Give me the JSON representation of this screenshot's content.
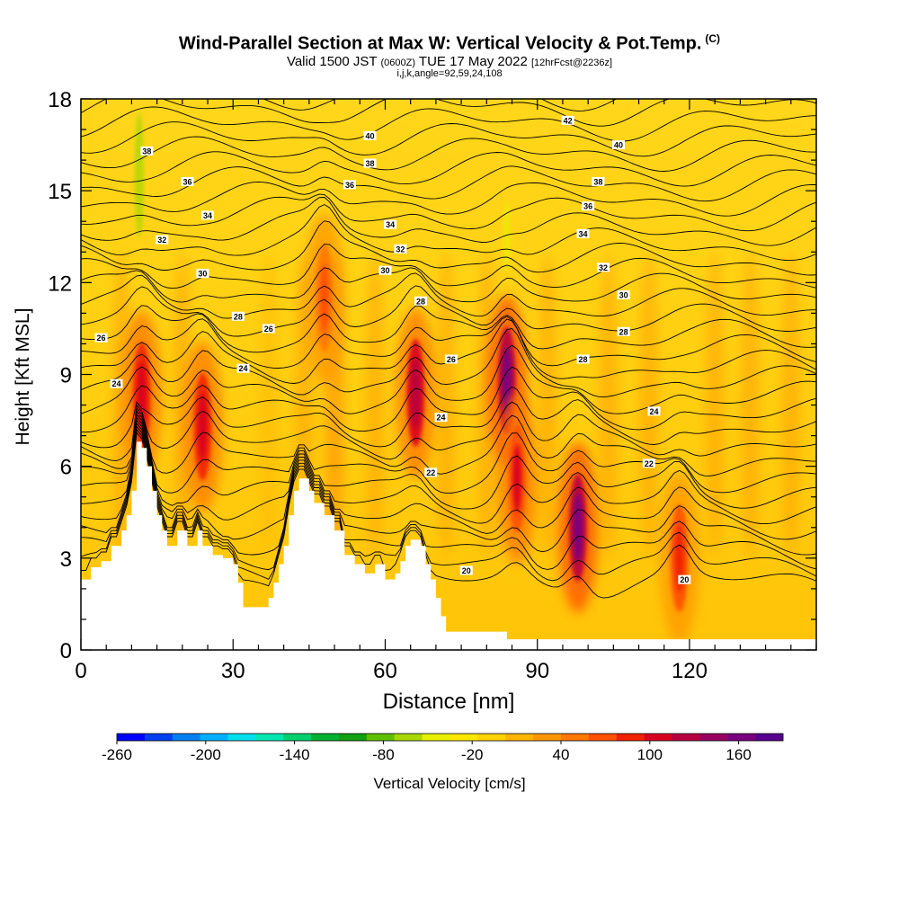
{
  "title": "Wind-Parallel Section at Max W: Vertical Velocity & Pot.Temp.",
  "title_mark": "(C)",
  "subtitle_main": "Valid 1500 JST",
  "subtitle_utc": "(0600Z)",
  "subtitle_date": "TUE 17 May 2022",
  "subtitle_fcst": "[12hrFcst@2236z]",
  "params": "i,j,k,angle=92,59,24,108",
  "chart_data": {
    "type": "heatmap",
    "title": "Wind-Parallel Section at Max W: Vertical Velocity & Pot.Temp.",
    "xlabel": "Distance [nm]",
    "ylabel": "Height [Kft MSL]",
    "xlim": [
      0,
      145
    ],
    "ylim": [
      0,
      18
    ],
    "x_ticks": [
      "0",
      "30",
      "60",
      "90",
      "120"
    ],
    "y_ticks": [
      "0",
      "3",
      "6",
      "9",
      "12",
      "15",
      "18"
    ],
    "colorbar": {
      "label": "Vertical Velocity [cm/s]",
      "tick_labels": [
        "-260",
        "-200",
        "-140",
        "-80",
        "-20",
        "40",
        "100",
        "160"
      ],
      "colors": [
        "#0000ff",
        "#0040f0",
        "#0080f0",
        "#00b0ff",
        "#00e0ee",
        "#00e8b0",
        "#00d070",
        "#00b030",
        "#10a010",
        "#60c000",
        "#a8d800",
        "#e8f000",
        "#ffe800",
        "#ffd200",
        "#ffb400",
        "#ff9600",
        "#ff7800",
        "#ff5000",
        "#f02000",
        "#d80020",
        "#b80040",
        "#980060",
        "#780080",
        "#580090"
      ]
    },
    "terrain_profile": [
      [
        0,
        2.3
      ],
      [
        2,
        2.7
      ],
      [
        4,
        2.9
      ],
      [
        6,
        3.4
      ],
      [
        8,
        3.9
      ],
      [
        9,
        4.4
      ],
      [
        10,
        5.2
      ],
      [
        11,
        6.8
      ],
      [
        12,
        6.6
      ],
      [
        13,
        6.0
      ],
      [
        14,
        5.2
      ],
      [
        15,
        4.4
      ],
      [
        16,
        3.9
      ],
      [
        17,
        3.4
      ],
      [
        18,
        3.4
      ],
      [
        19,
        3.9
      ],
      [
        20,
        3.9
      ],
      [
        21,
        3.4
      ],
      [
        22,
        3.4
      ],
      [
        23,
        3.9
      ],
      [
        24,
        3.4
      ],
      [
        25,
        3.4
      ],
      [
        26,
        3.1
      ],
      [
        28,
        3.0
      ],
      [
        30,
        2.8
      ],
      [
        31,
        2.2
      ],
      [
        32,
        1.4
      ],
      [
        36,
        1.4
      ],
      [
        37,
        1.7
      ],
      [
        38,
        2.2
      ],
      [
        39,
        2.8
      ],
      [
        40,
        3.4
      ],
      [
        41,
        4.4
      ],
      [
        42,
        5.2
      ],
      [
        43,
        5.6
      ],
      [
        44,
        5.6
      ],
      [
        45,
        5.2
      ],
      [
        46,
        4.8
      ],
      [
        47,
        4.8
      ],
      [
        48,
        4.4
      ],
      [
        50,
        3.9
      ],
      [
        52,
        3.1
      ],
      [
        54,
        2.8
      ],
      [
        56,
        2.5
      ],
      [
        58,
        2.8
      ],
      [
        60,
        2.3
      ],
      [
        61,
        2.3
      ],
      [
        62,
        2.5
      ],
      [
        63,
        2.9
      ],
      [
        64,
        3.4
      ],
      [
        65,
        3.6
      ],
      [
        66,
        3.6
      ],
      [
        67,
        3.4
      ],
      [
        68,
        2.8
      ],
      [
        69,
        2.3
      ],
      [
        70,
        1.7
      ],
      [
        71,
        1.1
      ],
      [
        72,
        0.6
      ],
      [
        78,
        0.6
      ],
      [
        82,
        0.6
      ],
      [
        84,
        0.35
      ],
      [
        145,
        0.35
      ]
    ],
    "updrafts": [
      {
        "x": 12,
        "z": 8.3,
        "max_cm_s": 110
      },
      {
        "x": 24,
        "z": 7.3,
        "max_cm_s": 110
      },
      {
        "x": 66,
        "z": 8.4,
        "max_cm_s": 130
      },
      {
        "x": 84,
        "z": 8.8,
        "max_cm_s": 170
      },
      {
        "x": 86,
        "z": 5.6,
        "max_cm_s": 100
      },
      {
        "x": 98,
        "z": 4.0,
        "max_cm_s": 170
      },
      {
        "x": 118,
        "z": 3.0,
        "max_cm_s": 80
      },
      {
        "x": 48,
        "z": 11.5,
        "max_cm_s": 60
      }
    ],
    "isentrope_labels": [
      {
        "text": "38",
        "x": 13,
        "z": 16.3
      },
      {
        "text": "36",
        "x": 21,
        "z": 15.3
      },
      {
        "text": "34",
        "x": 25,
        "z": 14.2
      },
      {
        "text": "32",
        "x": 16,
        "z": 13.4
      },
      {
        "text": "30",
        "x": 24,
        "z": 12.3
      },
      {
        "text": "28",
        "x": 31,
        "z": 10.9
      },
      {
        "text": "26",
        "x": 4,
        "z": 10.2
      },
      {
        "text": "26",
        "x": 37,
        "z": 10.5
      },
      {
        "text": "24",
        "x": 7,
        "z": 8.7
      },
      {
        "text": "24",
        "x": 32,
        "z": 9.2
      },
      {
        "text": "40",
        "x": 57,
        "z": 16.8
      },
      {
        "text": "38",
        "x": 57,
        "z": 15.9
      },
      {
        "text": "36",
        "x": 53,
        "z": 15.2
      },
      {
        "text": "34",
        "x": 61,
        "z": 13.9
      },
      {
        "text": "32",
        "x": 63,
        "z": 13.1
      },
      {
        "text": "30",
        "x": 60,
        "z": 12.4
      },
      {
        "text": "28",
        "x": 67,
        "z": 11.4
      },
      {
        "text": "26",
        "x": 73,
        "z": 9.5
      },
      {
        "text": "24",
        "x": 71,
        "z": 7.6
      },
      {
        "text": "22",
        "x": 69,
        "z": 5.8
      },
      {
        "text": "20",
        "x": 76,
        "z": 2.6
      },
      {
        "text": "42",
        "x": 96,
        "z": 17.3
      },
      {
        "text": "40",
        "x": 106,
        "z": 16.5
      },
      {
        "text": "38",
        "x": 102,
        "z": 15.3
      },
      {
        "text": "36",
        "x": 100,
        "z": 14.5
      },
      {
        "text": "34",
        "x": 99,
        "z": 13.6
      },
      {
        "text": "32",
        "x": 103,
        "z": 12.5
      },
      {
        "text": "30",
        "x": 107,
        "z": 11.6
      },
      {
        "text": "28",
        "x": 107,
        "z": 10.4
      },
      {
        "text": "28",
        "x": 99,
        "z": 9.5
      },
      {
        "text": "24",
        "x": 113,
        "z": 7.8
      },
      {
        "text": "22",
        "x": 112,
        "z": 6.1
      },
      {
        "text": "20",
        "x": 119,
        "z": 2.3
      }
    ]
  }
}
